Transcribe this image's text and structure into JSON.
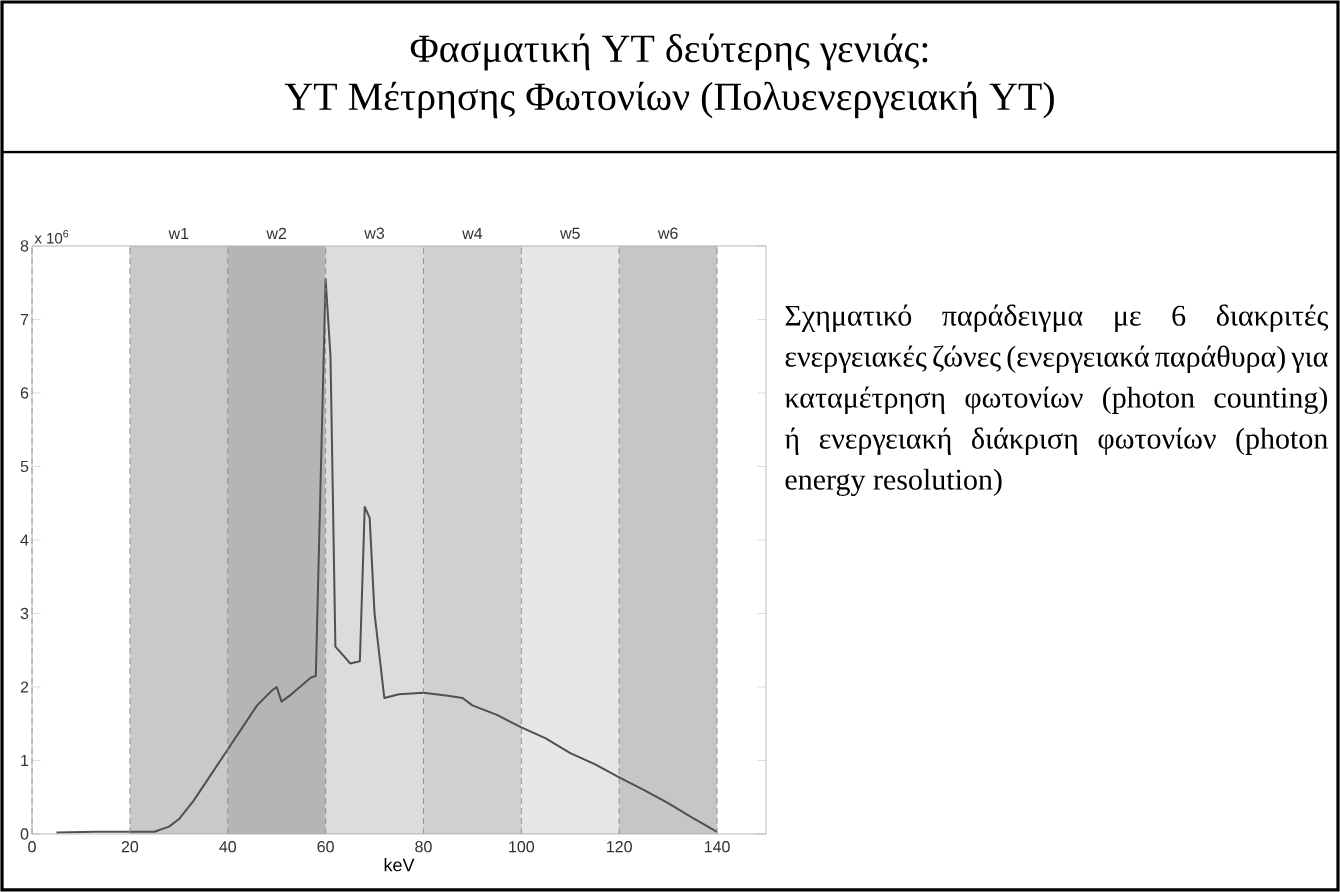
{
  "chart_data": {
    "type": "line",
    "title": "Φασματική ΥΤ δεύτερης γενιάς:",
    "subtitle": "ΥΤ Μέτρησης Φωτονίων (Πολυενεργειακή ΥΤ)",
    "xlabel": "keV",
    "x": [
      5,
      13,
      20,
      25,
      28,
      30,
      33,
      36,
      40,
      43,
      46,
      49,
      50,
      51,
      53,
      57,
      58,
      60,
      61,
      62,
      64,
      65,
      67,
      68,
      69,
      70,
      72,
      75,
      80,
      85,
      88,
      90,
      95,
      100,
      105,
      110,
      115,
      120,
      125,
      130,
      135,
      140
    ],
    "series": [
      {
        "color": "#505050",
        "values": [
          0.02,
          0.03,
          0.03,
          0.03,
          0.1,
          0.2,
          0.45,
          0.75,
          1.15,
          1.45,
          1.75,
          1.95,
          2.0,
          1.8,
          1.9,
          2.13,
          2.15,
          7.55,
          6.5,
          2.55,
          2.4,
          2.32,
          2.35,
          4.45,
          4.3,
          3.0,
          1.85,
          1.9,
          1.92,
          1.88,
          1.85,
          1.75,
          1.62,
          1.45,
          1.3,
          1.1,
          0.95,
          0.77,
          0.6,
          0.42,
          0.22,
          0.03
        ]
      }
    ],
    "xlim": [
      0,
      150
    ],
    "xticks": [
      0,
      20,
      40,
      60,
      80,
      100,
      120,
      140
    ],
    "ylim": [
      0,
      8
    ],
    "yticks": [
      0,
      1,
      2,
      3,
      4,
      5,
      6,
      7,
      8
    ],
    "bands": [
      {
        "axis": "x",
        "from": 20,
        "to": 40,
        "label": "w1",
        "color": "#c9c9c9"
      },
      {
        "axis": "x",
        "from": 40,
        "to": 60,
        "label": "w2",
        "color": "#b5b5b5"
      },
      {
        "axis": "x",
        "from": 60,
        "to": 80,
        "label": "w3",
        "color": "#dcdcdc"
      },
      {
        "axis": "x",
        "from": 80,
        "to": 100,
        "label": "w4",
        "color": "#d0d0d0"
      },
      {
        "axis": "x",
        "from": 100,
        "to": 120,
        "label": "w5",
        "color": "#e6e6e6"
      },
      {
        "axis": "x",
        "from": 120,
        "to": 140,
        "label": "w6",
        "color": "#c6c6c6"
      }
    ],
    "annotations": [
      "x 10$^{6}$",
      "Σχηματικό παράδειγμα με 6 διακριτές ενεργειακές ζώνες (ενεργειακά παράθυρα) για καταμέτρηση φωτονίων (photon counting) ή ενεργειακή διάκριση φωτονίων (photon energy resolution)"
    ],
    "grid": "x",
    "marker": "none",
    "line_style": "solid"
  }
}
